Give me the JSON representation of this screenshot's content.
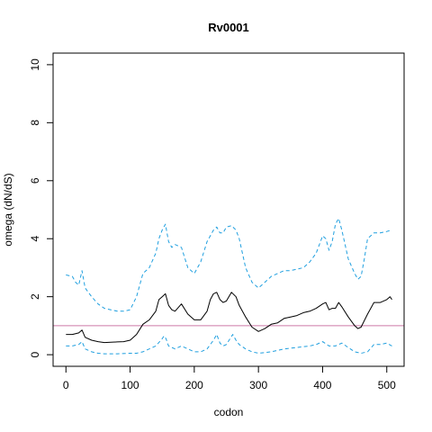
{
  "chart_data": {
    "type": "line",
    "title": "Rv0001",
    "xlabel": "codon",
    "ylabel": "omega (dN/dS)",
    "xlim": [
      -20,
      527
    ],
    "ylim": [
      -0.4,
      10.4
    ],
    "x_ticks": [
      0,
      100,
      200,
      300,
      400,
      500
    ],
    "y_ticks": [
      0,
      2,
      4,
      6,
      8,
      10
    ],
    "grid": false,
    "reference_line": {
      "y": 1,
      "color": "#cc79a7"
    },
    "series": [
      {
        "role": "estimate",
        "color": "#000000",
        "dash": "solid",
        "x": [
          0,
          10,
          20,
          25,
          30,
          40,
          50,
          60,
          70,
          80,
          90,
          100,
          110,
          120,
          130,
          140,
          145,
          150,
          155,
          160,
          165,
          170,
          180,
          190,
          200,
          210,
          220,
          225,
          230,
          235,
          240,
          245,
          250,
          258,
          265,
          270,
          280,
          290,
          300,
          310,
          320,
          330,
          340,
          350,
          360,
          370,
          380,
          390,
          400,
          405,
          410,
          415,
          420,
          425,
          430,
          440,
          450,
          455,
          460,
          470,
          480,
          490,
          500,
          505,
          508
        ],
        "values": [
          0.7,
          0.7,
          0.75,
          0.85,
          0.6,
          0.5,
          0.45,
          0.42,
          0.43,
          0.44,
          0.45,
          0.5,
          0.7,
          1.05,
          1.2,
          1.5,
          1.9,
          2.0,
          2.1,
          1.7,
          1.55,
          1.5,
          1.75,
          1.4,
          1.2,
          1.2,
          1.5,
          1.9,
          2.1,
          2.15,
          1.9,
          1.8,
          1.85,
          2.15,
          2.0,
          1.7,
          1.3,
          0.95,
          0.8,
          0.9,
          1.05,
          1.1,
          1.25,
          1.3,
          1.35,
          1.45,
          1.5,
          1.6,
          1.75,
          1.8,
          1.55,
          1.6,
          1.6,
          1.8,
          1.65,
          1.3,
          1.0,
          0.9,
          0.95,
          1.4,
          1.8,
          1.8,
          1.9,
          2.0,
          1.9
        ]
      },
      {
        "role": "upper",
        "color": "#1f9fdf",
        "dash": "dashed",
        "x": [
          0,
          10,
          15,
          20,
          25,
          30,
          40,
          50,
          60,
          70,
          80,
          90,
          100,
          110,
          120,
          130,
          140,
          145,
          150,
          155,
          160,
          165,
          170,
          180,
          190,
          200,
          210,
          220,
          225,
          230,
          235,
          240,
          245,
          250,
          258,
          265,
          270,
          280,
          290,
          300,
          310,
          320,
          330,
          340,
          350,
          360,
          370,
          380,
          390,
          395,
          400,
          405,
          410,
          415,
          420,
          425,
          430,
          440,
          450,
          455,
          460,
          465,
          470,
          480,
          490,
          500,
          508
        ],
        "values": [
          2.75,
          2.7,
          2.5,
          2.4,
          2.9,
          2.3,
          2.0,
          1.75,
          1.6,
          1.55,
          1.5,
          1.5,
          1.55,
          2.0,
          2.8,
          3.0,
          3.5,
          4.0,
          4.3,
          4.5,
          3.9,
          3.7,
          3.8,
          3.7,
          3.0,
          2.8,
          3.2,
          3.9,
          4.1,
          4.3,
          4.4,
          4.2,
          4.2,
          4.4,
          4.45,
          4.3,
          4.0,
          3.0,
          2.5,
          2.3,
          2.5,
          2.7,
          2.8,
          2.9,
          2.9,
          2.95,
          3.0,
          3.2,
          3.5,
          3.8,
          4.1,
          4.0,
          3.6,
          3.9,
          4.5,
          4.7,
          4.3,
          3.3,
          2.8,
          2.6,
          2.7,
          3.3,
          4.0,
          4.2,
          4.2,
          4.25,
          4.3
        ]
      },
      {
        "role": "lower",
        "color": "#1f9fdf",
        "dash": "dashed",
        "x": [
          0,
          10,
          20,
          25,
          30,
          40,
          50,
          60,
          80,
          100,
          110,
          120,
          130,
          140,
          150,
          153,
          156,
          160,
          170,
          180,
          190,
          200,
          210,
          220,
          230,
          235,
          240,
          245,
          250,
          260,
          265,
          270,
          280,
          290,
          300,
          320,
          340,
          360,
          380,
          390,
          400,
          410,
          420,
          430,
          440,
          450,
          460,
          470,
          480,
          490,
          500,
          508
        ],
        "values": [
          0.3,
          0.3,
          0.35,
          0.45,
          0.2,
          0.1,
          0.05,
          0.03,
          0.03,
          0.05,
          0.05,
          0.1,
          0.2,
          0.3,
          0.55,
          0.65,
          0.55,
          0.3,
          0.2,
          0.3,
          0.2,
          0.1,
          0.1,
          0.2,
          0.5,
          0.7,
          0.4,
          0.3,
          0.35,
          0.7,
          0.5,
          0.35,
          0.2,
          0.1,
          0.05,
          0.1,
          0.2,
          0.25,
          0.3,
          0.35,
          0.45,
          0.3,
          0.3,
          0.4,
          0.25,
          0.1,
          0.05,
          0.1,
          0.35,
          0.35,
          0.4,
          0.3
        ]
      }
    ]
  }
}
